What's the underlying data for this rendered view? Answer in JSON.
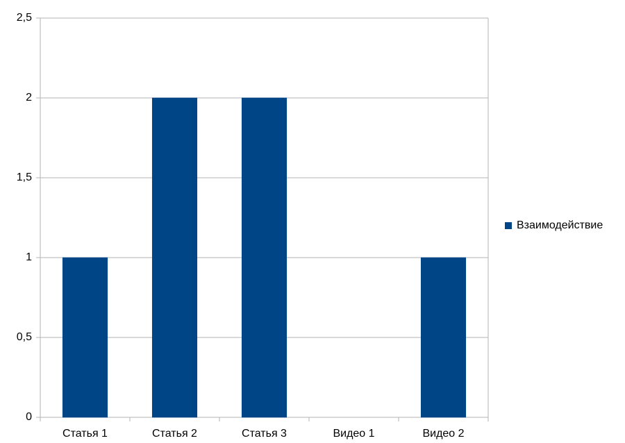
{
  "chart_data": {
    "type": "bar",
    "categories": [
      "Статья 1",
      "Статья 2",
      "Статья 3",
      "Видео 1",
      "Видео 2"
    ],
    "series": [
      {
        "name": "Взаимодействие",
        "color": "#004586",
        "values": [
          1,
          2,
          2,
          0,
          1
        ]
      }
    ],
    "ylim": [
      0,
      2.5
    ],
    "yticks": [
      0,
      {
        "value": 0.5,
        "label": "0,5"
      },
      1,
      {
        "value": 1.5,
        "label": "1,5"
      },
      2,
      {
        "value": 2.5,
        "label": "2,5"
      }
    ],
    "grid": true,
    "legend": "right"
  }
}
